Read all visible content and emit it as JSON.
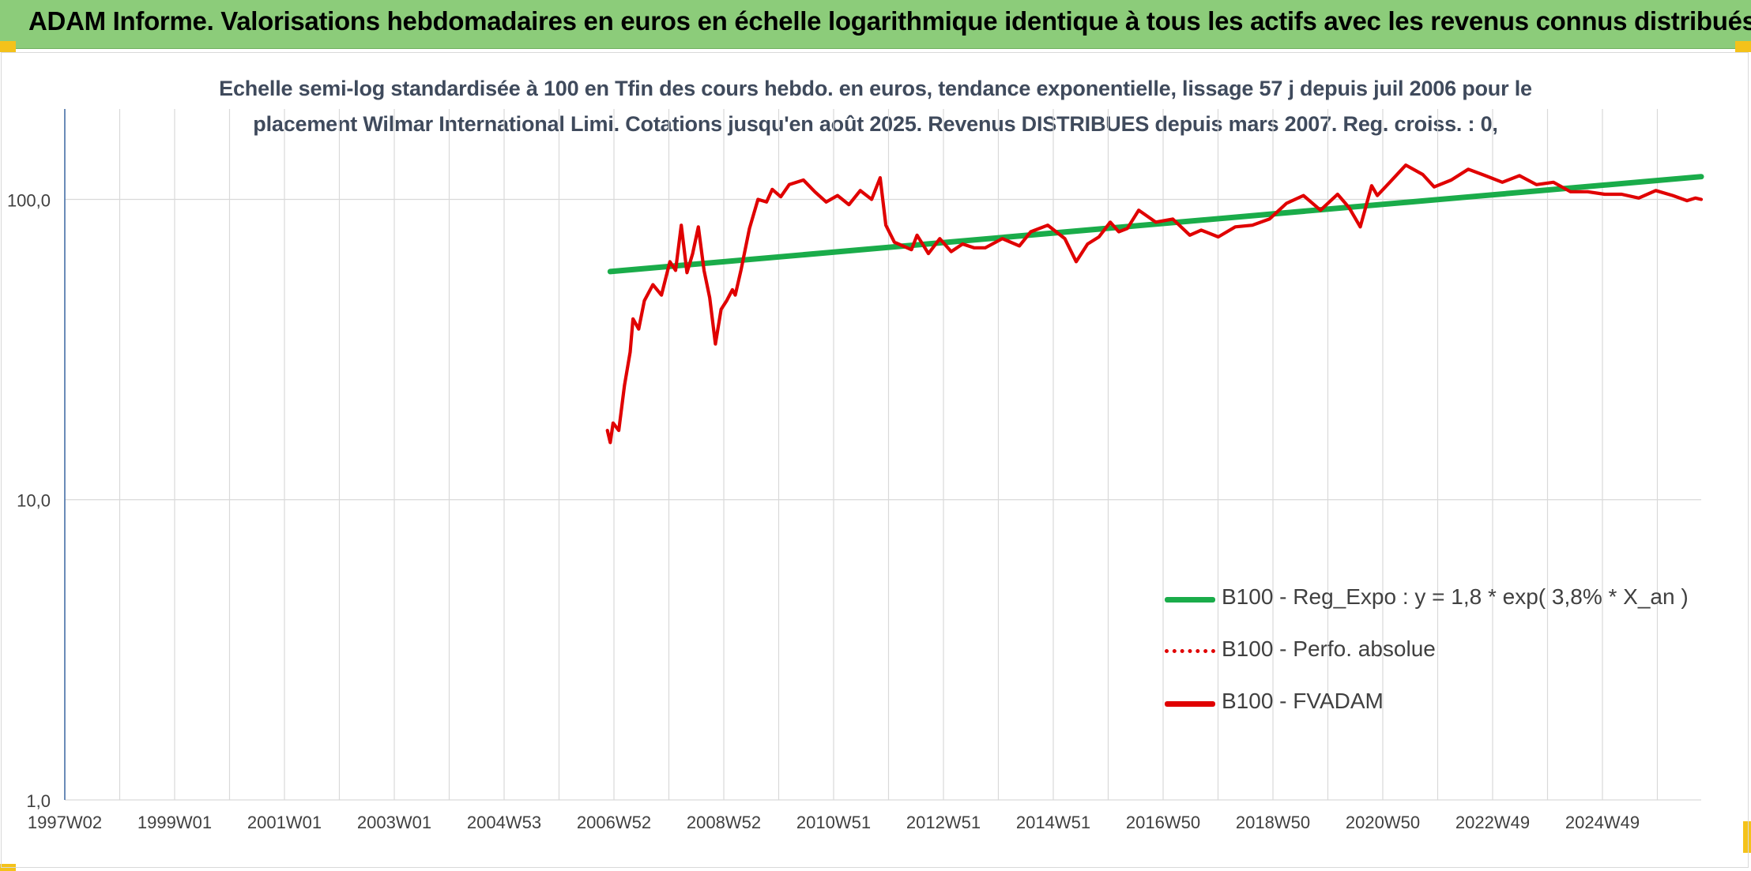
{
  "header": {
    "title": "ADAM Informe. Valorisations hebdomadaires en euros en échelle logarithmique identique à tous les actifs avec les revenus connus distribués"
  },
  "chart_data": {
    "type": "line",
    "title_line1": "Echelle semi-log standardisée à 100 en Tfin des cours hebdo. en euros, tendance exponentielle, lissage 57 j depuis juil 2006 pour le",
    "title_line2": "placement Wilmar International Limi. Cotations jusqu'en août 2025. Revenus DISTRIBUES depuis mars 2007. Reg. croiss. : 0,",
    "y_scale": "log",
    "ylim": [
      1,
      200
    ],
    "y_ticks": [
      {
        "value": 1,
        "label": "1,0"
      },
      {
        "value": 10,
        "label": "10,0"
      },
      {
        "value": 100,
        "label": "100,0"
      }
    ],
    "x_tick_labels": [
      "1997W02",
      "1999W01",
      "2001W01",
      "2003W01",
      "2004W53",
      "2006W52",
      "2008W52",
      "2010W51",
      "2012W51",
      "2014W51",
      "2016W50",
      "2018W50",
      "2020W50",
      "2022W49",
      "2024W49"
    ],
    "xlim": [
      1997.0,
      2025.8
    ],
    "grid": "vertical",
    "legend_position": "bottom-right",
    "series": [
      {
        "name": "B100 - Reg_Expo : y = 1,8 * exp( 3,8% *  X_an )",
        "color": "#1aac4a",
        "style": "solid-thick",
        "x": [
          2006.6,
          2025.8
        ],
        "y": [
          57.5,
          119
        ]
      },
      {
        "name": "B100 - Perfo. absolue",
        "color": "#e00000",
        "style": "dotted",
        "x": [],
        "y": []
      },
      {
        "name": "B100 - FVADAM",
        "color": "#e00000",
        "style": "solid",
        "x": [
          2006.55,
          2006.6,
          2006.65,
          2006.75,
          2006.85,
          2006.95,
          2007.0,
          2007.1,
          2007.2,
          2007.35,
          2007.5,
          2007.65,
          2007.75,
          2007.85,
          2007.95,
          2008.05,
          2008.15,
          2008.25,
          2008.35,
          2008.45,
          2008.55,
          2008.65,
          2008.75,
          2008.8,
          2008.9,
          2009.05,
          2009.2,
          2009.35,
          2009.45,
          2009.6,
          2009.75,
          2010.0,
          2010.2,
          2010.4,
          2010.6,
          2010.8,
          2011.0,
          2011.2,
          2011.35,
          2011.45,
          2011.6,
          2011.75,
          2011.9,
          2012.0,
          2012.2,
          2012.4,
          2012.6,
          2012.8,
          2013.0,
          2013.2,
          2013.5,
          2013.8,
          2014.0,
          2014.3,
          2014.6,
          2014.8,
          2015.0,
          2015.2,
          2015.4,
          2015.55,
          2015.7,
          2015.9,
          2016.2,
          2016.5,
          2016.8,
          2017.0,
          2017.3,
          2017.6,
          2017.9,
          2018.2,
          2018.5,
          2018.8,
          2019.1,
          2019.4,
          2019.6,
          2019.8,
          2020.0,
          2020.1,
          2020.3,
          2020.6,
          2020.9,
          2021.1,
          2021.4,
          2021.7,
          2022.0,
          2022.3,
          2022.6,
          2022.9,
          2023.2,
          2023.5,
          2023.8,
          2024.1,
          2024.4,
          2024.7,
          2025.0,
          2025.3,
          2025.55,
          2025.7,
          2025.8
        ],
        "y": [
          17,
          15.5,
          18,
          17,
          24,
          31,
          40,
          37,
          46,
          52,
          48,
          62,
          58,
          82,
          57,
          66,
          81,
          58,
          47,
          33,
          43,
          46,
          50,
          48,
          58,
          80,
          100,
          98,
          108,
          102,
          112,
          116,
          106,
          98,
          103,
          96,
          107,
          100,
          118,
          82,
          72,
          70,
          68,
          76,
          66,
          74,
          67,
          71,
          69,
          69,
          74,
          70,
          78,
          82,
          74,
          62,
          71,
          75,
          84,
          78,
          80,
          92,
          84,
          86,
          76,
          79,
          75,
          81,
          82,
          86,
          97,
          103,
          92,
          104,
          94,
          81,
          111,
          103,
          113,
          130,
          121,
          110,
          116,
          126,
          120,
          114,
          120,
          112,
          114,
          106,
          106,
          104,
          104,
          101,
          107,
          103,
          99,
          101,
          100
        ]
      }
    ]
  },
  "colors": {
    "banner_bg": "#8ccc7a",
    "corner_accent": "#f4c21a",
    "grid": "#d9d9d9",
    "y_axis": "#5b7fb0",
    "trend": "#1aac4a",
    "price": "#e00000",
    "text": "#404040"
  }
}
